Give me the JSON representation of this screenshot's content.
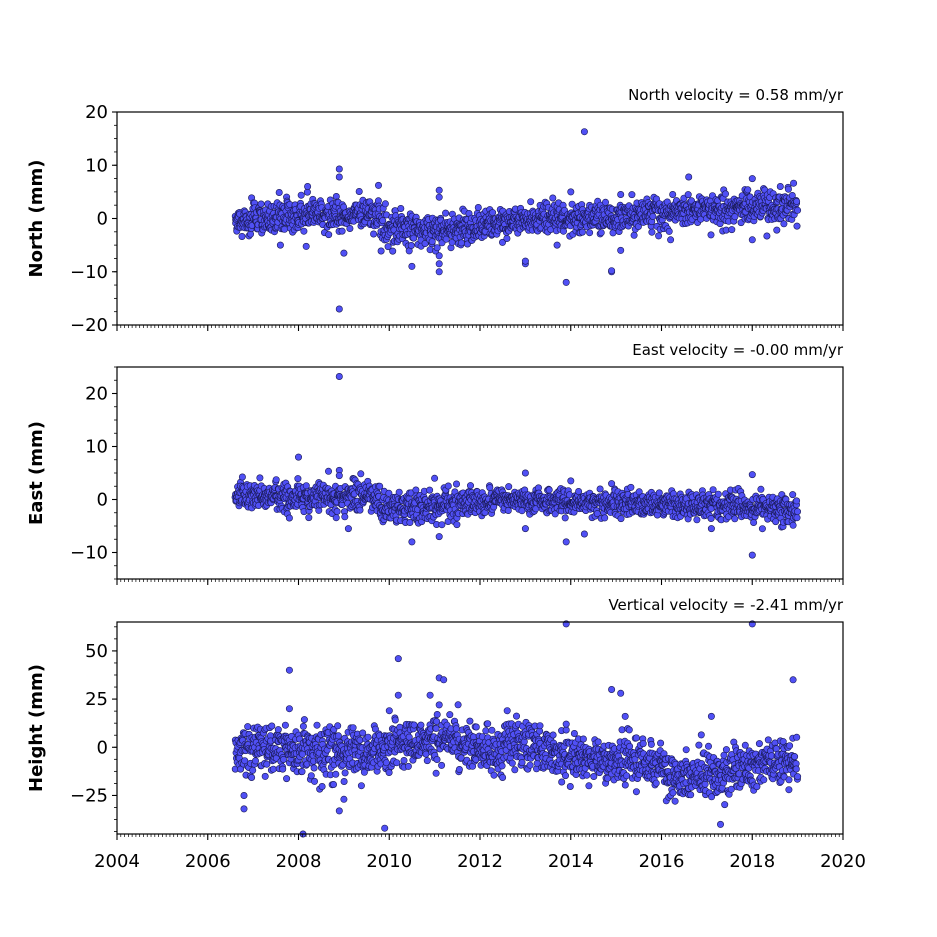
{
  "chart_data": [
    {
      "type": "scatter",
      "title": "North velocity = 0.58 mm/yr",
      "xlabel": "",
      "ylabel": "North (mm)",
      "xlim": [
        2004,
        2020
      ],
      "ylim": [
        -20,
        20
      ],
      "yticks": [
        "−20",
        "−10",
        "0",
        "10",
        "20"
      ],
      "ytick_values": [
        -20,
        -10,
        0,
        10,
        20
      ],
      "series": [
        {
          "segments": [
            {
              "x0": 2006.6,
              "x1": 2008.0,
              "mean0": -0.5,
              "mean1": 0.5,
              "spread": 1.5
            },
            {
              "x0": 2008.0,
              "x1": 2009.8,
              "mean0": 0.5,
              "mean1": 0.8,
              "spread": 1.6
            },
            {
              "x0": 2009.8,
              "x1": 2011.2,
              "mean0": -1.5,
              "mean1": -2.5,
              "spread": 1.8
            },
            {
              "x0": 2011.2,
              "x1": 2013.0,
              "mean0": -2.0,
              "mean1": -0.5,
              "spread": 1.4
            },
            {
              "x0": 2013.0,
              "x1": 2016.1,
              "mean0": -0.5,
              "mean1": 1.0,
              "spread": 1.4
            },
            {
              "x0": 2016.1,
              "x1": 2017.0,
              "mean0": 1.0,
              "mean1": 1.5,
              "spread": 1.4
            },
            {
              "x0": 2017.0,
              "x1": 2019.0,
              "mean0": 1.5,
              "mean1": 2.5,
              "spread": 1.6
            }
          ],
          "outliers": [
            [
              2008.2,
              6
            ],
            [
              2008.9,
              9.3
            ],
            [
              2008.9,
              7.8
            ],
            [
              2008.9,
              -17
            ],
            [
              2009.0,
              -6.5
            ],
            [
              2010.5,
              -9
            ],
            [
              2011.1,
              5.3
            ],
            [
              2011.1,
              4
            ],
            [
              2011.1,
              -10
            ],
            [
              2011.1,
              -8.5
            ],
            [
              2011.1,
              -7
            ],
            [
              2013.0,
              -8.5
            ],
            [
              2013.0,
              -8
            ],
            [
              2013.9,
              -12
            ],
            [
              2014.0,
              5
            ],
            [
              2014.3,
              16.3
            ],
            [
              2014.9,
              -10
            ],
            [
              2014.9,
              -9.8
            ],
            [
              2015.1,
              4.5
            ],
            [
              2015.1,
              -6
            ],
            [
              2016.6,
              7.8
            ],
            [
              2018.0,
              7.5
            ],
            [
              2018.0,
              -4
            ],
            [
              2016.2,
              -4
            ],
            [
              2013.7,
              -5
            ]
          ]
        }
      ]
    },
    {
      "type": "scatter",
      "title": "East velocity = -0.00 mm/yr",
      "xlabel": "",
      "ylabel": "East (mm)",
      "xlim": [
        2004,
        2020
      ],
      "ylim": [
        -15,
        25
      ],
      "yticks": [
        "−10",
        "0",
        "10",
        "20"
      ],
      "ytick_values": [
        -10,
        0,
        10,
        20
      ],
      "series": [
        {
          "segments": [
            {
              "x0": 2006.6,
              "x1": 2008.0,
              "mean0": 1.0,
              "mean1": 0.5,
              "spread": 1.3
            },
            {
              "x0": 2008.0,
              "x1": 2009.8,
              "mean0": 0.5,
              "mean1": 0.5,
              "spread": 1.4
            },
            {
              "x0": 2009.8,
              "x1": 2011.5,
              "mean0": -1.5,
              "mean1": -1.0,
              "spread": 1.5
            },
            {
              "x0": 2011.5,
              "x1": 2013.5,
              "mean0": -0.5,
              "mean1": 0.0,
              "spread": 1.2
            },
            {
              "x0": 2013.5,
              "x1": 2016.1,
              "mean0": -0.5,
              "mean1": -1.0,
              "spread": 1.2
            },
            {
              "x0": 2016.1,
              "x1": 2017.5,
              "mean0": -1.0,
              "mean1": -1.2,
              "spread": 1.2
            },
            {
              "x0": 2017.5,
              "x1": 2019.0,
              "mean0": -1.5,
              "mean1": -2.0,
              "spread": 1.3
            }
          ],
          "outliers": [
            [
              2008.9,
              23.2
            ],
            [
              2008.9,
              5.5
            ],
            [
              2008.9,
              4.5
            ],
            [
              2008.0,
              8
            ],
            [
              2009.1,
              -5.5
            ],
            [
              2007.8,
              -3.5
            ],
            [
              2010.5,
              -8
            ],
            [
              2011.1,
              -7
            ],
            [
              2013.0,
              5
            ],
            [
              2013.0,
              -5.5
            ],
            [
              2013.9,
              -8
            ],
            [
              2014.0,
              3.5
            ],
            [
              2014.3,
              -6.5
            ],
            [
              2014.9,
              3
            ],
            [
              2017.1,
              -5.5
            ],
            [
              2018.0,
              4.7
            ],
            [
              2018.0,
              -10.5
            ],
            [
              2011.0,
              4
            ]
          ]
        }
      ]
    },
    {
      "type": "scatter",
      "title": "Vertical velocity = -2.41 mm/yr",
      "xlabel": "",
      "ylabel": "Height (mm)",
      "xlim": [
        2004,
        2020
      ],
      "ylim": [
        -45,
        65
      ],
      "yticks": [
        "−25",
        "0",
        "25",
        "50"
      ],
      "ytick_values": [
        -25,
        0,
        25,
        50
      ],
      "xticks": [
        "2004",
        "2006",
        "2008",
        "2010",
        "2012",
        "2014",
        "2016",
        "2018",
        "2020"
      ],
      "xtick_values": [
        2004,
        2006,
        2008,
        2010,
        2012,
        2014,
        2016,
        2018,
        2020
      ],
      "series": [
        {
          "segments": [
            {
              "x0": 2006.6,
              "x1": 2008.0,
              "mean0": 0,
              "mean1": -2,
              "spread": 6
            },
            {
              "x0": 2008.0,
              "x1": 2010.0,
              "mean0": -3,
              "mean1": -4,
              "spread": 7
            },
            {
              "x0": 2010.0,
              "x1": 2011.5,
              "mean0": 2,
              "mean1": 6,
              "spread": 6
            },
            {
              "x0": 2011.5,
              "x1": 2012.5,
              "mean0": 2,
              "mean1": -2,
              "spread": 6
            },
            {
              "x0": 2012.5,
              "x1": 2014.5,
              "mean0": 4,
              "mean1": -8,
              "spread": 6
            },
            {
              "x0": 2014.5,
              "x1": 2016.1,
              "mean0": -6,
              "mean1": -8,
              "spread": 6
            },
            {
              "x0": 2016.1,
              "x1": 2017.5,
              "mean0": -15,
              "mean1": -12,
              "spread": 6
            },
            {
              "x0": 2017.5,
              "x1": 2019.0,
              "mean0": -10,
              "mean1": -9,
              "spread": 6
            }
          ],
          "outliers": [
            [
              2006.8,
              -25
            ],
            [
              2006.8,
              -32
            ],
            [
              2007.8,
              40
            ],
            [
              2007.8,
              20
            ],
            [
              2008.1,
              -45
            ],
            [
              2008.9,
              -33
            ],
            [
              2009.0,
              -27
            ],
            [
              2009.9,
              -42
            ],
            [
              2010.2,
              46
            ],
            [
              2010.2,
              27
            ],
            [
              2010.9,
              27
            ],
            [
              2011.1,
              36
            ],
            [
              2011.2,
              35
            ],
            [
              2011.1,
              22
            ],
            [
              2012.6,
              19
            ],
            [
              2013.9,
              64
            ],
            [
              2013.9,
              12
            ],
            [
              2014.9,
              30
            ],
            [
              2015.1,
              28
            ],
            [
              2015.2,
              16
            ],
            [
              2016.3,
              -28
            ],
            [
              2017.1,
              16
            ],
            [
              2017.3,
              -40
            ],
            [
              2018.0,
              64
            ],
            [
              2018.9,
              35
            ],
            [
              2014.4,
              -20
            ],
            [
              2013.8,
              -18
            ]
          ]
        }
      ]
    }
  ]
}
